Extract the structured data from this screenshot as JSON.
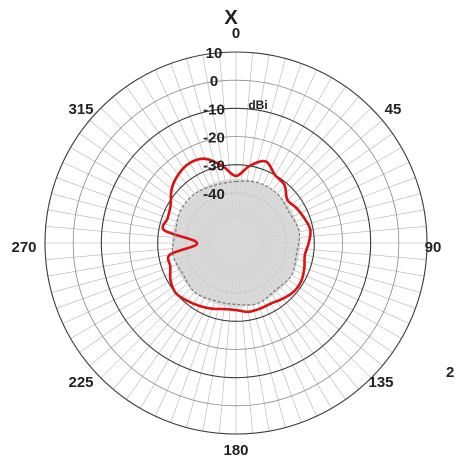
{
  "chart_data": {
    "type": "polar",
    "title": "",
    "axis_name": "X",
    "unit": "dBi",
    "radial_range": [
      -50,
      10
    ],
    "radial_ticks": [
      10,
      0,
      -10,
      -20,
      -30,
      -40
    ],
    "radial_tick_labels": [
      "10",
      "0",
      "-10",
      "-20",
      "-30",
      "-40"
    ],
    "angle_labels": [
      {
        "angle": 0,
        "text": "0"
      },
      {
        "angle": 45,
        "text": "45"
      },
      {
        "angle": 90,
        "text": "90"
      },
      {
        "angle": 135,
        "text": "135"
      },
      {
        "angle": 180,
        "text": "180"
      },
      {
        "angle": 225,
        "text": "225"
      },
      {
        "angle": 270,
        "text": "270"
      },
      {
        "angle": 315,
        "text": "315"
      }
    ],
    "edge_text": "2",
    "grid": true,
    "series": [
      {
        "color": "#dd1111",
        "angles": [
          0,
          10,
          20,
          30,
          40,
          50,
          60,
          70,
          80,
          90,
          100,
          110,
          120,
          130,
          140,
          150,
          160,
          170,
          180,
          190,
          200,
          210,
          220,
          230,
          240,
          250,
          260,
          270,
          280,
          290,
          300,
          310,
          320,
          330,
          340,
          350
        ],
        "values": [
          -34,
          -30,
          -27,
          -30,
          -31,
          -34,
          -33,
          -32,
          -31,
          -32,
          -33,
          -32,
          -31,
          -31,
          -32,
          -33,
          -33,
          -33,
          -34,
          -34,
          -33,
          -32,
          -31,
          -30,
          -31,
          -33,
          -34,
          -44,
          -32,
          -32,
          -31,
          -28,
          -26,
          -25,
          -26,
          -30
        ]
      },
      {
        "color": "#777777",
        "angles": [
          0,
          20,
          40,
          60,
          80,
          100,
          120,
          140,
          160,
          180,
          200,
          220,
          240,
          260,
          280,
          300,
          320,
          340
        ],
        "values": [
          -36,
          -35,
          -35,
          -36,
          -35,
          -36,
          -35,
          -36,
          -35,
          -36,
          -36,
          -35,
          -36,
          -35,
          -36,
          -35,
          -35,
          -36
        ]
      }
    ]
  }
}
